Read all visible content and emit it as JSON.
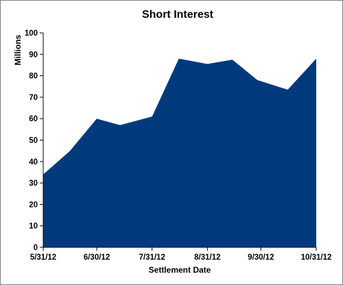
{
  "chart_data": {
    "type": "area",
    "title": "Short Interest",
    "xlabel": "Settlement Date",
    "ylabel": "Millions",
    "x_tick_labels": [
      "5/31/12",
      "6/30/12",
      "7/31/12",
      "8/31/12",
      "9/30/12",
      "10/31/12"
    ],
    "x": [
      "5/31/12",
      "6/15/12",
      "6/30/12",
      "7/13/12",
      "7/31/12",
      "8/15/12",
      "8/31/12",
      "9/14/12",
      "9/28/12",
      "10/15/12",
      "10/31/12"
    ],
    "values": [
      34,
      45,
      60,
      57,
      61,
      88,
      85.5,
      87.5,
      78,
      73.5,
      88
    ],
    "ylim": [
      0,
      100
    ],
    "yticks": [
      0,
      10,
      20,
      30,
      40,
      50,
      60,
      70,
      80,
      90,
      100
    ],
    "color": "#003A7D",
    "grid": false,
    "legend": "none"
  }
}
